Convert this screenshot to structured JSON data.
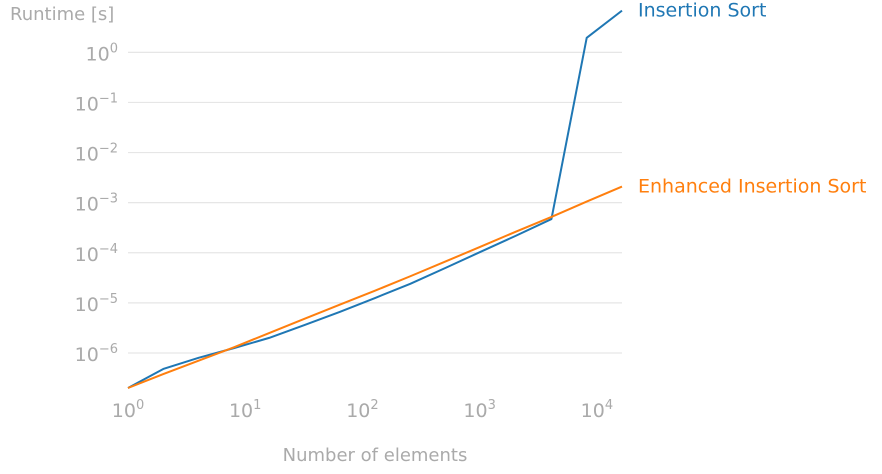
{
  "chart_data": {
    "type": "line",
    "ylabel": "Runtime [s]",
    "xlabel": "Number of elements",
    "x_scale": "log",
    "y_scale": "log",
    "xlim": [
      1,
      16384
    ],
    "ylim": [
      2e-07,
      7
    ],
    "x_ticks": [
      {
        "base": "10",
        "exp": "0",
        "value": 1
      },
      {
        "base": "10",
        "exp": "1",
        "value": 10
      },
      {
        "base": "10",
        "exp": "2",
        "value": 100
      },
      {
        "base": "10",
        "exp": "3",
        "value": 1000
      },
      {
        "base": "10",
        "exp": "4",
        "value": 10000
      }
    ],
    "y_ticks": [
      {
        "base": "10",
        "exp": "0",
        "value": 1
      },
      {
        "base": "10",
        "exp": "−1",
        "value": 0.1
      },
      {
        "base": "10",
        "exp": "−2",
        "value": 0.01
      },
      {
        "base": "10",
        "exp": "−3",
        "value": 0.001
      },
      {
        "base": "10",
        "exp": "−4",
        "value": 0.0001
      },
      {
        "base": "10",
        "exp": "−5",
        "value": 1e-05
      },
      {
        "base": "10",
        "exp": "−6",
        "value": 1e-06
      }
    ],
    "grid": "horizontal",
    "legend": "direct-labels-right",
    "series": [
      {
        "name": "Insertion Sort",
        "color": "#1f77b4",
        "points": [
          [
            1,
            2e-07
          ],
          [
            2,
            4.8e-07
          ],
          [
            4,
            8e-07
          ],
          [
            8,
            1.25e-06
          ],
          [
            16,
            2e-06
          ],
          [
            32,
            3.6e-06
          ],
          [
            64,
            6.6e-06
          ],
          [
            128,
            1.25e-05
          ],
          [
            256,
            2.4e-05
          ],
          [
            512,
            5e-05
          ],
          [
            1024,
            0.000105
          ],
          [
            2048,
            0.00022
          ],
          [
            4096,
            0.00047
          ],
          [
            8192,
            1.95
          ],
          [
            16384,
            6.8
          ]
        ]
      },
      {
        "name": "Enhanced Insertion Sort",
        "color": "#ff7f0e",
        "points": [
          [
            1,
            2e-07
          ],
          [
            2,
            3.8e-07
          ],
          [
            4,
            7e-07
          ],
          [
            8,
            1.3e-06
          ],
          [
            16,
            2.5e-06
          ],
          [
            32,
            4.8e-06
          ],
          [
            64,
            9.2e-06
          ],
          [
            128,
            1.75e-05
          ],
          [
            256,
            3.4e-05
          ],
          [
            512,
            6.7e-05
          ],
          [
            1024,
            0.000133
          ],
          [
            2048,
            0.000265
          ],
          [
            4096,
            0.00052
          ],
          [
            8192,
            0.00105
          ],
          [
            16384,
            0.0021
          ]
        ]
      }
    ]
  }
}
